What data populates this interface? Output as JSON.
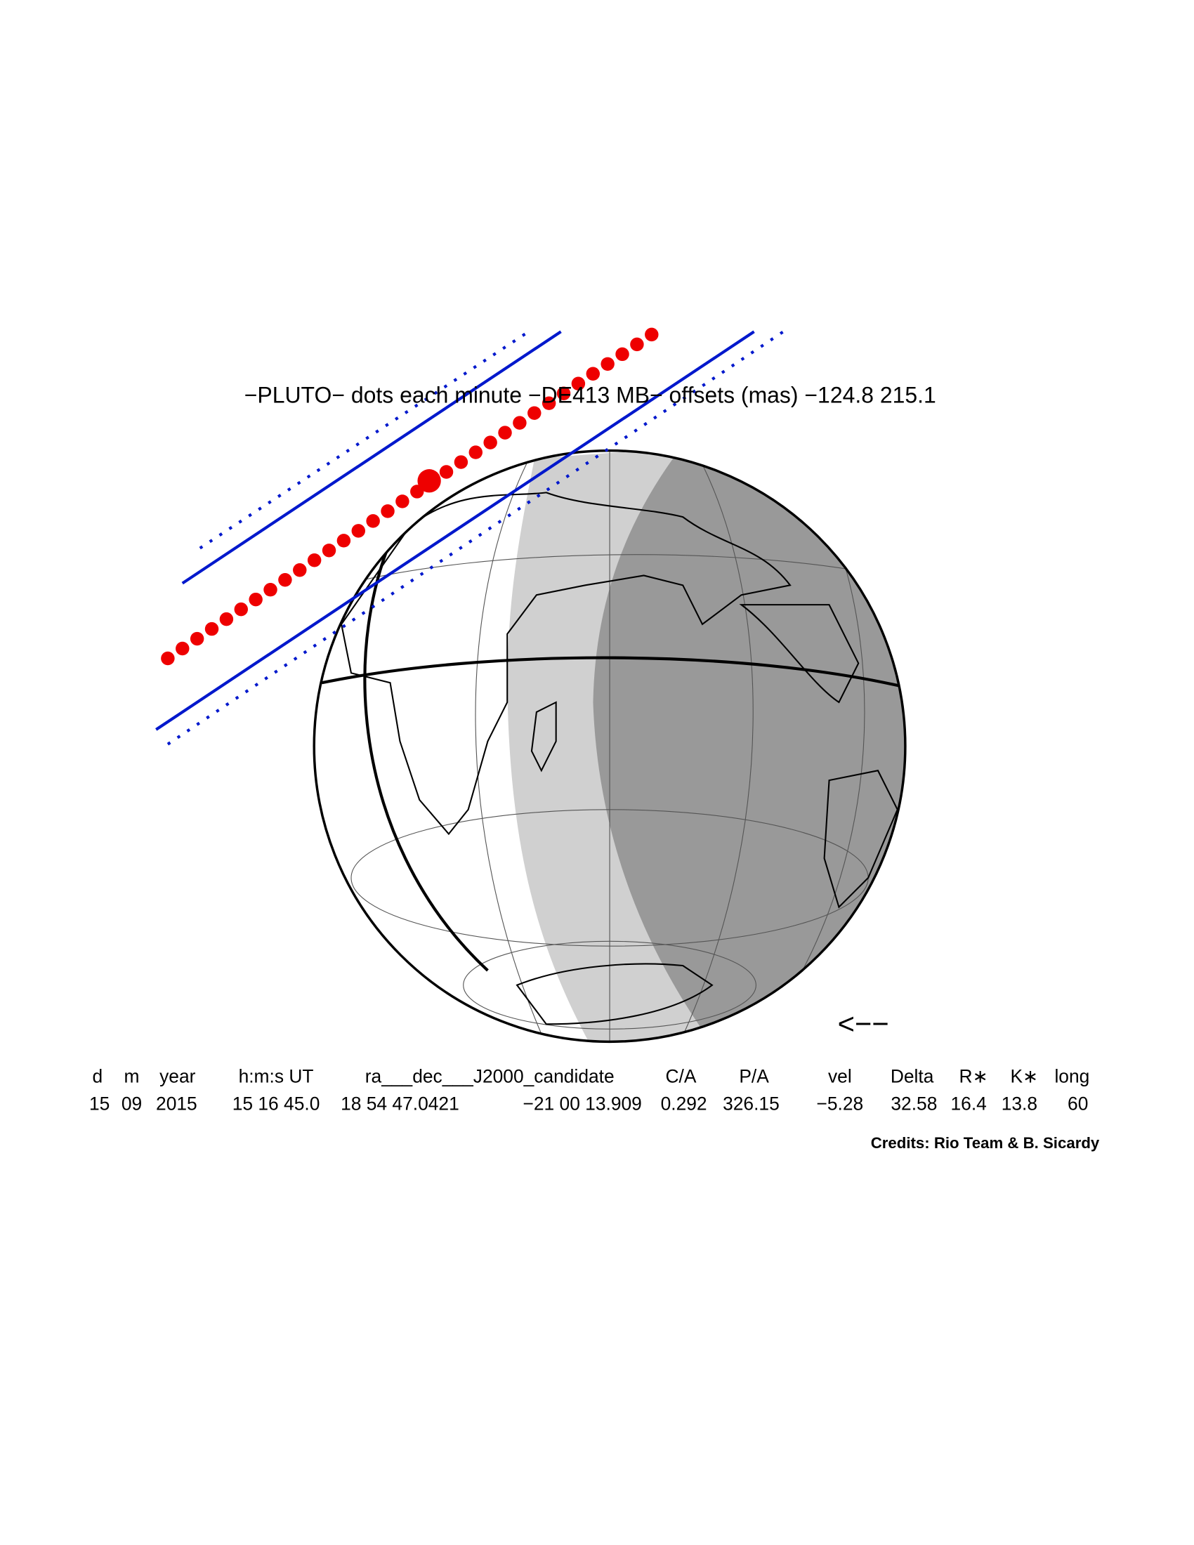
{
  "title": "−PLUTO− dots each minute −DE413 MB− offsets (mas) −124.8  215.1",
  "direction_arrow": "<−−",
  "table": {
    "headers": [
      "d",
      "m",
      "year",
      "h:m:s UT",
      "ra___dec___J2000_candidate",
      "C/A",
      "P/A",
      "vel",
      "Delta",
      "R∗",
      "K∗",
      "long"
    ],
    "values": [
      "15",
      "09",
      "2015",
      "15 16 45.0",
      "18 54 47.0421",
      "−21 00 13.909",
      "0.292",
      "326.15",
      "−5.28",
      "32.58",
      "16.4",
      "13.8",
      "60"
    ]
  },
  "credits": "Credits: Rio Team & B. Sicardy"
}
